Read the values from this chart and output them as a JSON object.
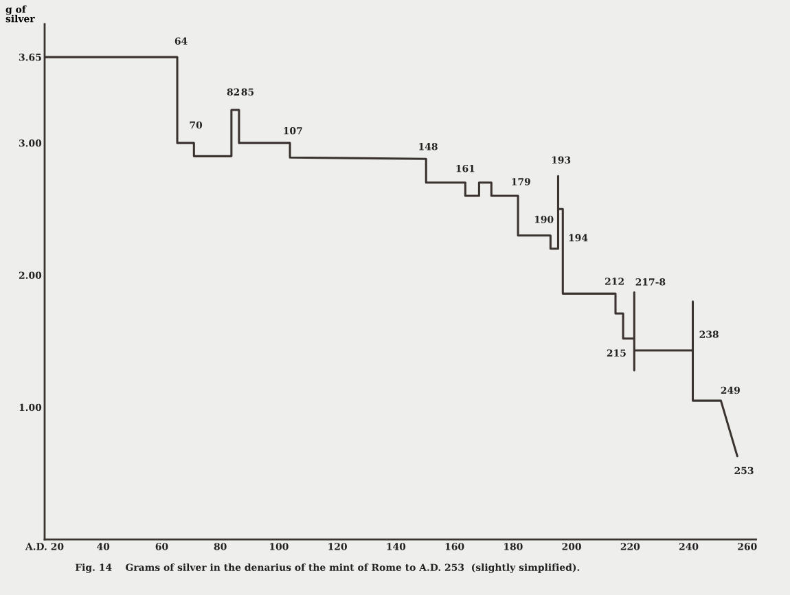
{
  "chart_data": {
    "type": "line",
    "ylabel": "g of\nsilver",
    "x": [
      20,
      65.3,
      65.3,
      71,
      71,
      83.8,
      83.8,
      86.4,
      86.4,
      103.8,
      103.8,
      150.3,
      150.3,
      163.7,
      163.7,
      168.4,
      168.4,
      172.6,
      172.6,
      181.7,
      181.7,
      192.8,
      192.8,
      195.4,
      195.4,
      195.4,
      197,
      197,
      215,
      215,
      217.6,
      217.6,
      221.4,
      221.4,
      221.4,
      221.4,
      241.4,
      241.4,
      241.4,
      251,
      256.6
    ],
    "series": [
      {
        "color": "#3a3330",
        "values": [
          3.65,
          3.65,
          3.0,
          3.0,
          2.9,
          2.9,
          3.25,
          3.25,
          3.0,
          3.0,
          2.89,
          2.88,
          2.7,
          2.7,
          2.6,
          2.6,
          2.7,
          2.7,
          2.6,
          2.6,
          2.3,
          2.3,
          2.2,
          2.2,
          2.75,
          2.5,
          2.5,
          1.86,
          1.86,
          1.71,
          1.71,
          1.52,
          1.52,
          1.87,
          1.28,
          1.43,
          1.43,
          1.8,
          1.05,
          1.05,
          0.63
        ]
      }
    ],
    "xlim": [
      20,
      263
    ],
    "ylim": [
      0,
      3.9
    ],
    "xticks": [
      {
        "value": 20,
        "label": "A.D. 20"
      },
      40,
      60,
      80,
      100,
      120,
      140,
      160,
      180,
      200,
      220,
      240,
      260
    ],
    "yticks": [
      {
        "value": 1,
        "label": "1.00"
      },
      {
        "value": 2,
        "label": "2.00"
      },
      {
        "value": 3,
        "label": "3.00"
      },
      {
        "value": 3.65,
        "label": "3.65"
      }
    ],
    "grid": false,
    "legend": false,
    "marker": "none",
    "line_style": "solid",
    "annotations": [
      {
        "text": "64",
        "x": 65.3,
        "y": 3.65
      },
      {
        "text": "70",
        "x": 71,
        "y": 3.0
      },
      {
        "text": "82",
        "x": 83.8,
        "y": 3.25
      },
      {
        "text": "85",
        "x": 86.4,
        "y": 3.25
      },
      {
        "text": "107",
        "x": 103.8,
        "y": 3.0
      },
      {
        "text": "148",
        "x": 150.3,
        "y": 2.88
      },
      {
        "text": "161",
        "x": 163.7,
        "y": 2.7
      },
      {
        "text": "179",
        "x": 181.7,
        "y": 2.6
      },
      {
        "text": "193",
        "x": 195.4,
        "y": 2.75
      },
      {
        "text": "190",
        "x": 192.8,
        "y": 2.3
      },
      {
        "text": "194",
        "x": 197,
        "y": 2.5
      },
      {
        "text": "212",
        "x": 215,
        "y": 1.86
      },
      {
        "text": "217-8",
        "x": 221.4,
        "y": 1.87
      },
      {
        "text": "215",
        "x": 217.6,
        "y": 1.52
      },
      {
        "text": "238",
        "x": 241.4,
        "y": 1.43
      },
      {
        "text": "249",
        "x": 251,
        "y": 1.05
      },
      {
        "text": "253",
        "x": 256.6,
        "y": 0.63
      },
      "Fig. 14    Grams of silver in the denarius of the mint of Rome to A.D. 253  (slightly simplified)."
    ]
  }
}
